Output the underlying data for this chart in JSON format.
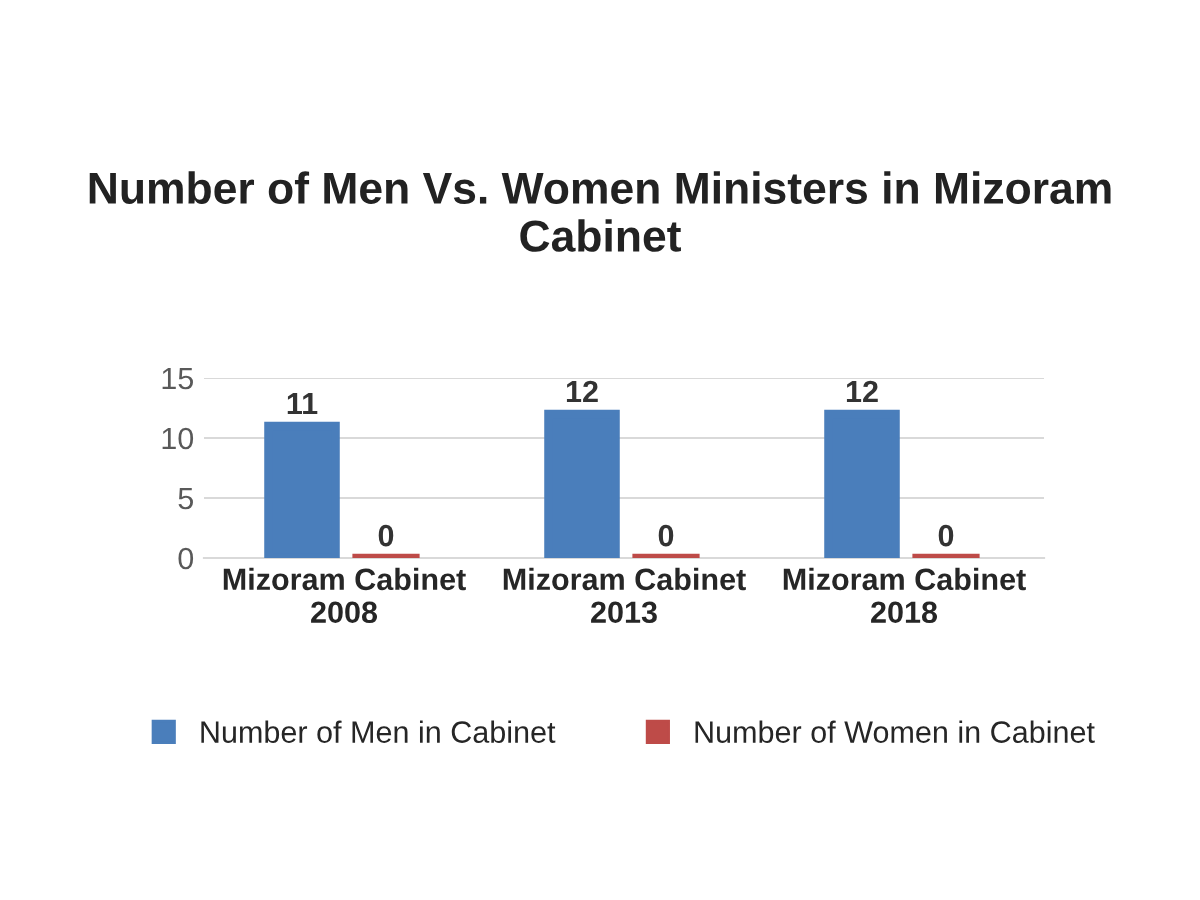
{
  "chart_data": {
    "type": "bar",
    "title": "Number of Men Vs. Women Ministers in Mizoram Cabinet",
    "categories": [
      "Mizoram Cabinet\n2008",
      "Mizoram Cabinet\n2013",
      "Mizoram Cabinet\n2018"
    ],
    "series": [
      {
        "name": "Number of Men in Cabinet",
        "color": "#4a7ebb",
        "values": [
          11,
          12,
          12
        ]
      },
      {
        "name": "Number of Women in Cabinet",
        "color": "#be4b48",
        "values": [
          0,
          0,
          0
        ]
      }
    ],
    "ylim": [
      0,
      15
    ],
    "yticks": [
      0,
      5,
      10,
      15
    ],
    "data_labels": true,
    "legend": "bottom",
    "grid": "y"
  }
}
